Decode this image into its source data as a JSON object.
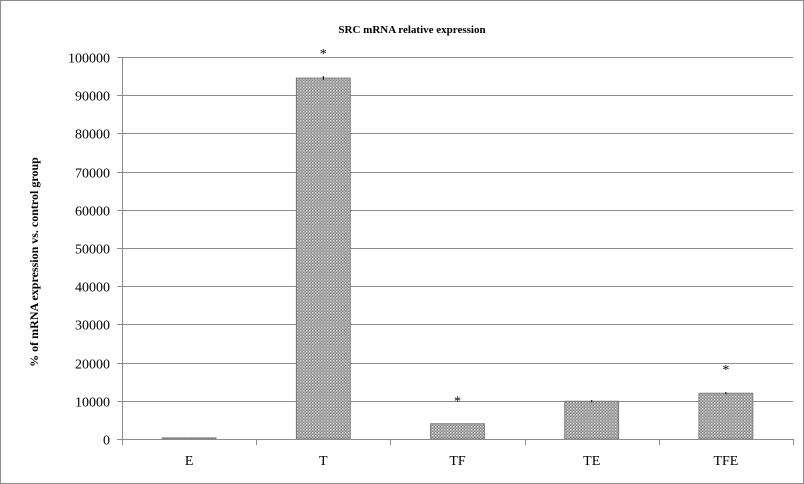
{
  "chart_data": {
    "type": "bar",
    "title": "SRC mRNA relative expression",
    "xlabel": "",
    "ylabel": "% of mRNA expression vs. control group",
    "categories": [
      "E",
      "T",
      "TF",
      "TE",
      "TFE"
    ],
    "values": [
      300,
      94500,
      4000,
      9900,
      12000
    ],
    "errors": [
      0,
      500,
      0,
      300,
      300
    ],
    "annotations": [
      "",
      "*",
      "*",
      "",
      "*"
    ],
    "ylim": [
      0,
      100000
    ],
    "yticks": [
      0,
      10000,
      20000,
      30000,
      40000,
      50000,
      60000,
      70000,
      80000,
      90000,
      100000
    ],
    "grid": true,
    "legend": "none",
    "bar_fill": "#8a8a8a",
    "bar_pattern_dot": "#d8d8d8"
  }
}
